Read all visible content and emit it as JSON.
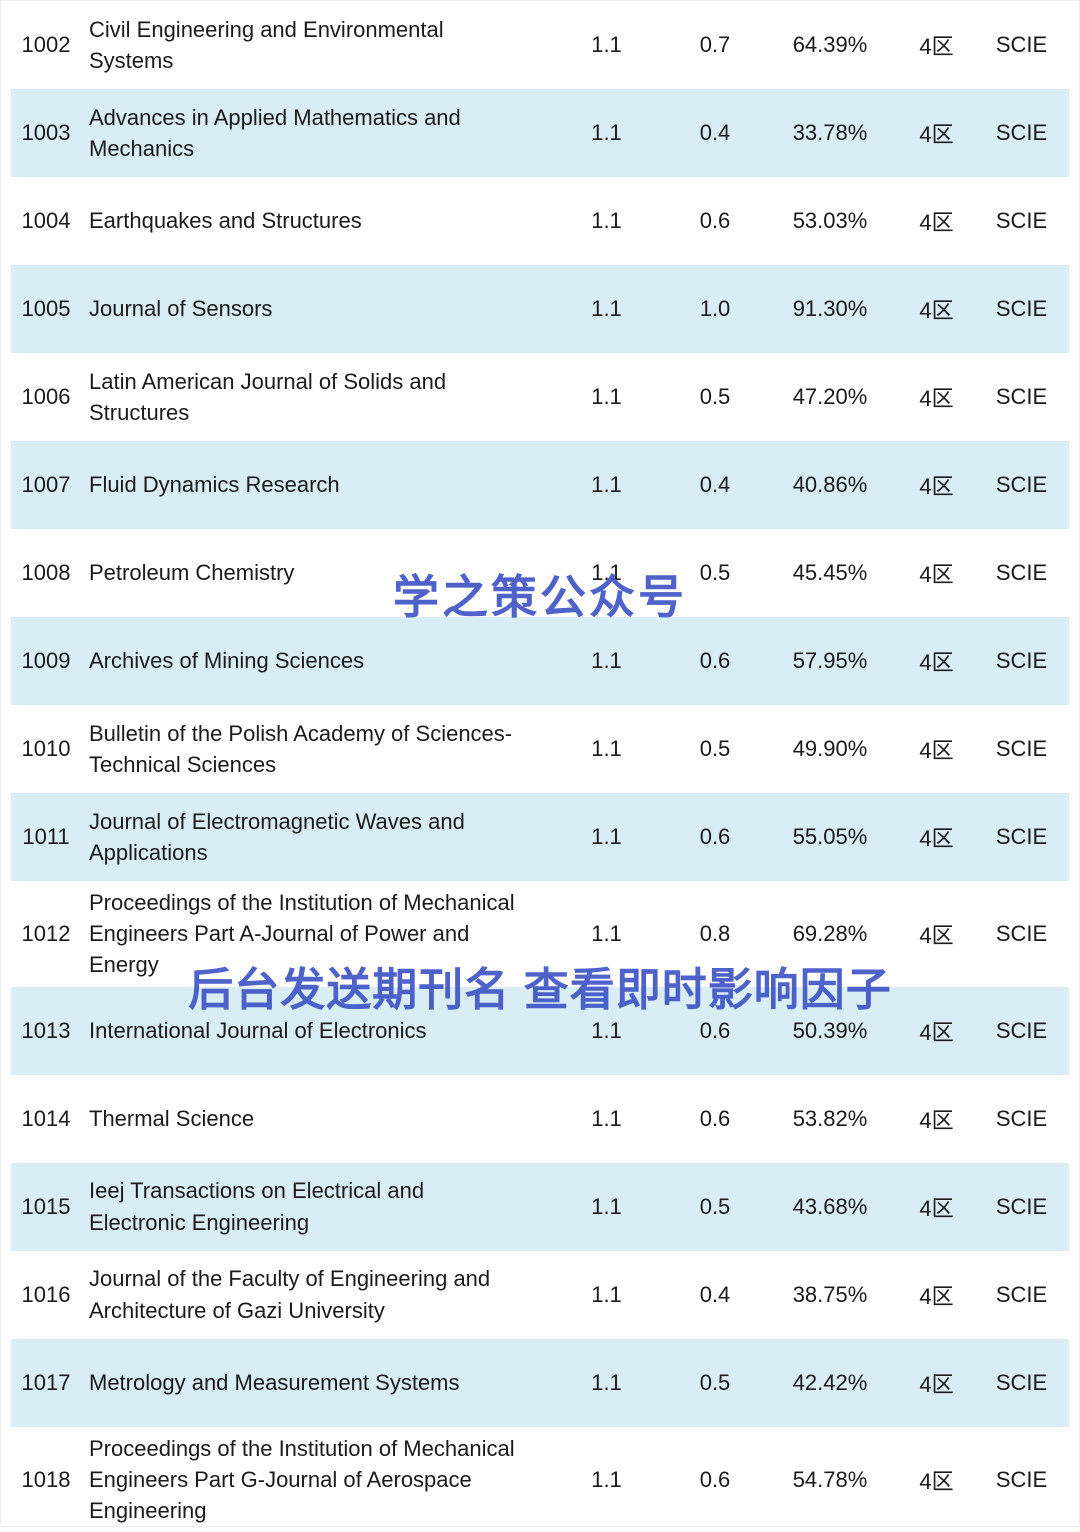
{
  "colors": {
    "row_alt_background": "#d9edf4",
    "watermark_blue": "#3f55c5",
    "text": "#1b1b1b"
  },
  "watermarks": {
    "center": "学之策公众号",
    "bottom": "后台发送期刊名 查看即时影响因子"
  },
  "table": {
    "rows": [
      {
        "rank": "1002",
        "name": "Civil Engineering and Environmental Systems",
        "if_value": "1.1",
        "metric": "0.7",
        "percent": "64.39%",
        "zone": "4区",
        "index": "SCIE"
      },
      {
        "rank": "1003",
        "name": "Advances in Applied Mathematics and Mechanics",
        "if_value": "1.1",
        "metric": "0.4",
        "percent": "33.78%",
        "zone": "4区",
        "index": "SCIE"
      },
      {
        "rank": "1004",
        "name": "Earthquakes and Structures",
        "if_value": "1.1",
        "metric": "0.6",
        "percent": "53.03%",
        "zone": "4区",
        "index": "SCIE"
      },
      {
        "rank": "1005",
        "name": "Journal of Sensors",
        "if_value": "1.1",
        "metric": "1.0",
        "percent": "91.30%",
        "zone": "4区",
        "index": "SCIE"
      },
      {
        "rank": "1006",
        "name": "Latin American Journal of Solids and Structures",
        "if_value": "1.1",
        "metric": "0.5",
        "percent": "47.20%",
        "zone": "4区",
        "index": "SCIE"
      },
      {
        "rank": "1007",
        "name": "Fluid Dynamics Research",
        "if_value": "1.1",
        "metric": "0.4",
        "percent": "40.86%",
        "zone": "4区",
        "index": "SCIE"
      },
      {
        "rank": "1008",
        "name": "Petroleum Chemistry",
        "if_value": "1.1",
        "metric": "0.5",
        "percent": "45.45%",
        "zone": "4区",
        "index": "SCIE"
      },
      {
        "rank": "1009",
        "name": "Archives of Mining Sciences",
        "if_value": "1.1",
        "metric": "0.6",
        "percent": "57.95%",
        "zone": "4区",
        "index": "SCIE"
      },
      {
        "rank": "1010",
        "name": "Bulletin of the Polish Academy of Sciences-Technical Sciences",
        "if_value": "1.1",
        "metric": "0.5",
        "percent": "49.90%",
        "zone": "4区",
        "index": "SCIE"
      },
      {
        "rank": "1011",
        "name": "Journal of Electromagnetic Waves and Applications",
        "if_value": "1.1",
        "metric": "0.6",
        "percent": "55.05%",
        "zone": "4区",
        "index": "SCIE"
      },
      {
        "rank": "1012",
        "name": "Proceedings of the Institution of Mechanical Engineers Part A-Journal of Power and Energy",
        "if_value": "1.1",
        "metric": "0.8",
        "percent": "69.28%",
        "zone": "4区",
        "index": "SCIE"
      },
      {
        "rank": "1013",
        "name": "International Journal of Electronics",
        "if_value": "1.1",
        "metric": "0.6",
        "percent": "50.39%",
        "zone": "4区",
        "index": "SCIE"
      },
      {
        "rank": "1014",
        "name": "Thermal Science",
        "if_value": "1.1",
        "metric": "0.6",
        "percent": "53.82%",
        "zone": "4区",
        "index": "SCIE"
      },
      {
        "rank": "1015",
        "name": "Ieej Transactions on Electrical and Electronic Engineering",
        "if_value": "1.1",
        "metric": "0.5",
        "percent": "43.68%",
        "zone": "4区",
        "index": "SCIE"
      },
      {
        "rank": "1016",
        "name": "Journal of the Faculty of Engineering and Architecture of Gazi University",
        "if_value": "1.1",
        "metric": "0.4",
        "percent": "38.75%",
        "zone": "4区",
        "index": "SCIE"
      },
      {
        "rank": "1017",
        "name": "Metrology and Measurement Systems",
        "if_value": "1.1",
        "metric": "0.5",
        "percent": "42.42%",
        "zone": "4区",
        "index": "SCIE"
      },
      {
        "rank": "1018",
        "name": "Proceedings of the Institution of Mechanical Engineers Part G-Journal of Aerospace Engineering",
        "if_value": "1.1",
        "metric": "0.6",
        "percent": "54.78%",
        "zone": "4区",
        "index": "SCIE"
      }
    ]
  }
}
